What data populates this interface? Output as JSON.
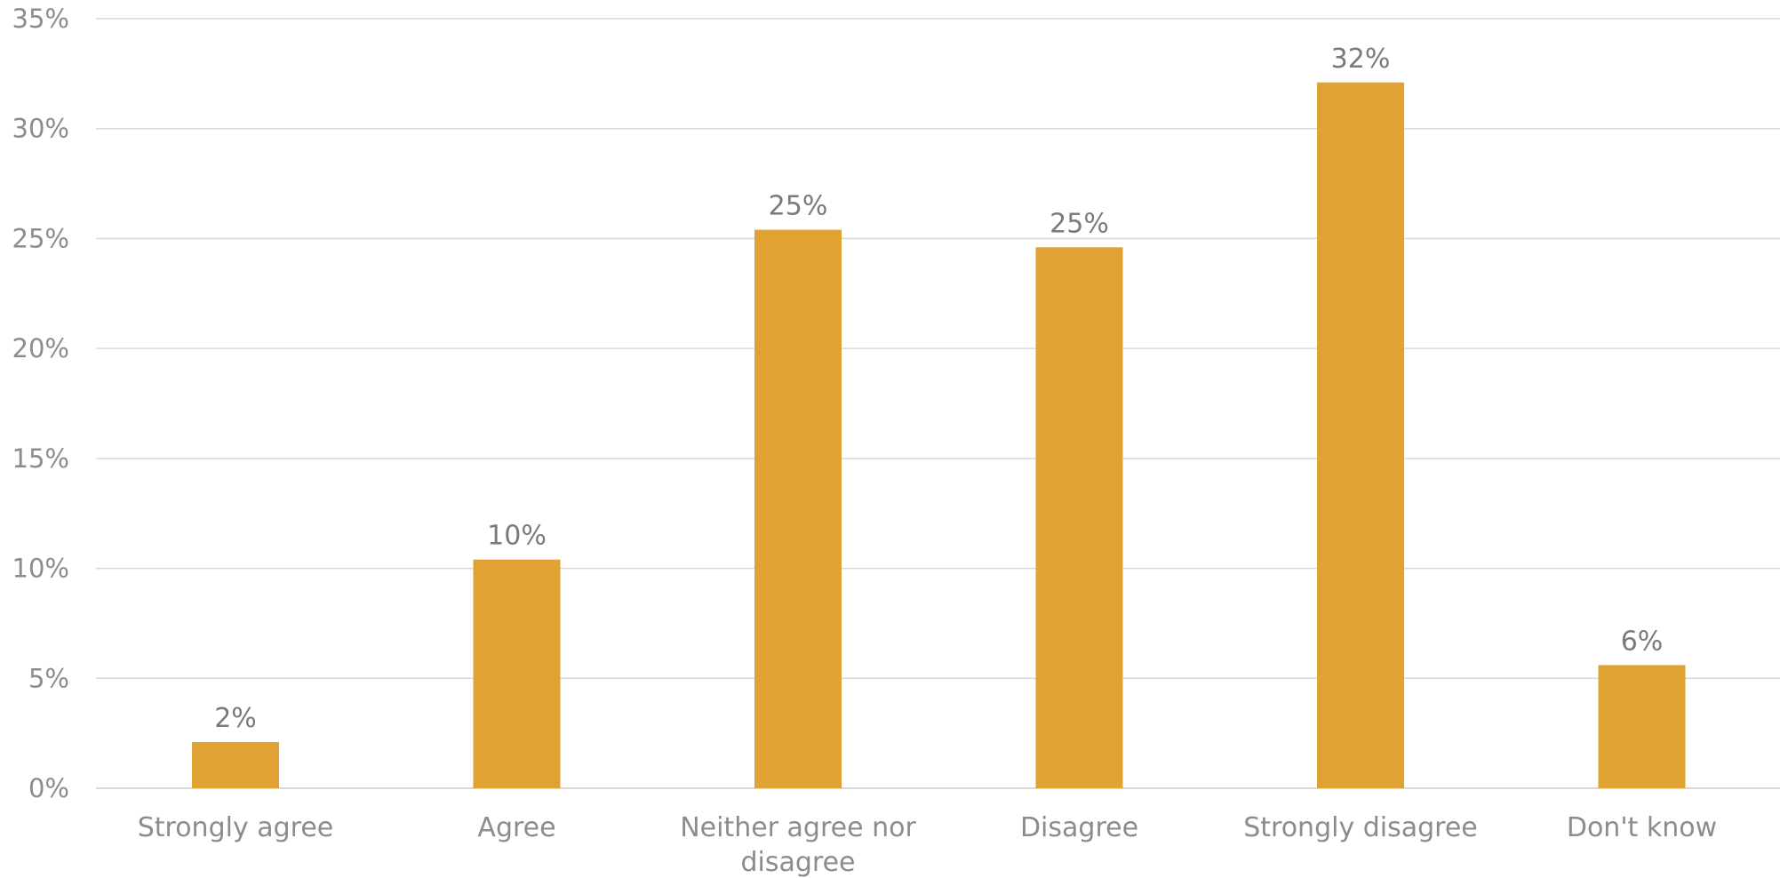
{
  "chart_data": {
    "type": "bar",
    "categories": [
      "Strongly agree",
      "Agree",
      "Neither agree nor disagree",
      "Disagree",
      "Strongly disagree",
      "Don't know"
    ],
    "category_label_lines": [
      [
        "Strongly agree"
      ],
      [
        "Agree"
      ],
      [
        "Neither agree nor",
        "disagree"
      ],
      [
        "Disagree"
      ],
      [
        "Strongly disagree"
      ],
      [
        "Don't know"
      ]
    ],
    "values": [
      2.1,
      10.4,
      25.4,
      24.6,
      32.1,
      5.6
    ],
    "data_labels": [
      "2%",
      "10%",
      "25%",
      "25%",
      "32%",
      "6%"
    ],
    "ylim": [
      0,
      35
    ],
    "yticks": [
      0,
      5,
      10,
      15,
      20,
      25,
      30,
      35
    ],
    "ytick_labels": [
      "0%",
      "5%",
      "10%",
      "15%",
      "20%",
      "25%",
      "30%",
      "35%"
    ],
    "title": "",
    "xlabel": "",
    "ylabel": "",
    "grid": true,
    "legend": "none",
    "bar_color": "#E0A233"
  }
}
